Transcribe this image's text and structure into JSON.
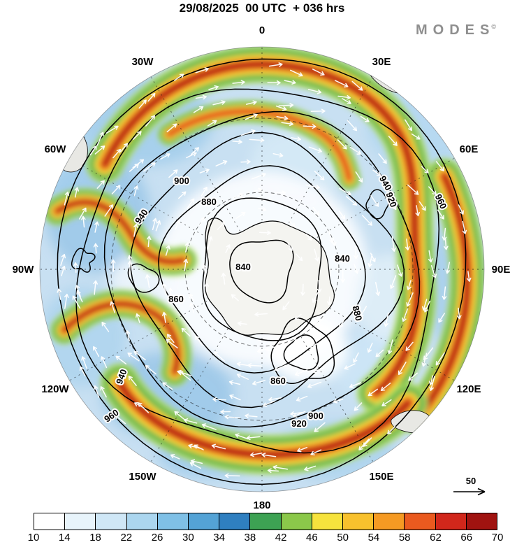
{
  "header": {
    "title": "29/08/2025  00 UTC  + 036 hrs"
  },
  "brand": {
    "name": "MODES",
    "mark": "©"
  },
  "map": {
    "lon_labels": [
      "0",
      "30E",
      "60E",
      "90E",
      "120E",
      "150E",
      "180",
      "150W",
      "120W",
      "90W",
      "60W",
      "30W"
    ],
    "contour_labels": [
      "840",
      "840",
      "860",
      "860",
      "880",
      "880",
      "900",
      "900",
      "920",
      "920",
      "940",
      "940",
      "940",
      "960",
      "960",
      "960"
    ],
    "reference_arrow_label": "50",
    "wind_arrow_color": "#ffffff",
    "contour_color": "#000000",
    "land_color": "#f4f4f0",
    "ocean_base_color": "#c8e0f2"
  },
  "colorbar": {
    "ticks": [
      "10",
      "14",
      "18",
      "22",
      "26",
      "30",
      "34",
      "38",
      "42",
      "46",
      "50",
      "54",
      "58",
      "62",
      "66",
      "70"
    ],
    "cell_colors": [
      "#ffffff",
      "#e8f4fb",
      "#cfe7f6",
      "#abd6ef",
      "#7fc0e6",
      "#54a3d6",
      "#2f7fc0",
      "#3da253",
      "#8bc84a",
      "#f6e33d",
      "#f8c12d",
      "#f59a23",
      "#ea5a1f",
      "#d1271b",
      "#a01310"
    ]
  }
}
